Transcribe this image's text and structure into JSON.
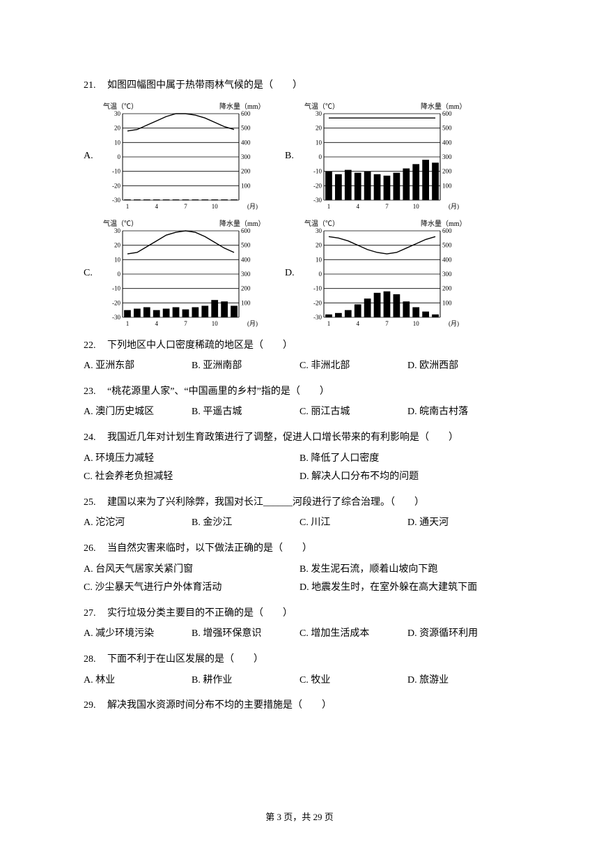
{
  "q21": {
    "num": "21.",
    "stem": "如图四幅图中属于热带雨林气候的是（　　）",
    "charts": {
      "axis_temp_label": "气温（℃）",
      "axis_precip_label": "降水量（mm）",
      "x_label": "(月)",
      "temp_ticks": [
        30,
        20,
        10,
        0,
        -10,
        -20,
        -30
      ],
      "precip_ticks": [
        600,
        500,
        400,
        300,
        200,
        100
      ],
      "x_ticks": [
        1,
        4,
        7,
        10
      ],
      "colors": {
        "line": "#000000",
        "bar": "#000000",
        "axis": "#000000",
        "bg": "#ffffff"
      },
      "A": {
        "label": "A.",
        "temp": [
          18,
          19,
          22,
          25,
          28,
          30,
          30,
          29,
          27,
          24,
          21,
          19
        ],
        "precip": [
          5,
          5,
          5,
          5,
          5,
          5,
          5,
          5,
          5,
          5,
          5,
          5
        ]
      },
      "B": {
        "label": "B.",
        "temp": [
          27,
          27,
          27,
          27,
          27,
          27,
          27,
          27,
          27,
          27,
          27,
          27
        ],
        "precip": [
          200,
          180,
          210,
          190,
          200,
          180,
          170,
          190,
          220,
          250,
          280,
          260
        ]
      },
      "C": {
        "label": "C.",
        "temp": [
          14,
          15,
          19,
          23,
          27,
          29,
          30,
          29,
          26,
          22,
          18,
          15
        ],
        "precip": [
          50,
          60,
          70,
          50,
          60,
          70,
          55,
          70,
          80,
          120,
          110,
          80
        ]
      },
      "D": {
        "label": "D.",
        "temp": [
          26,
          25,
          23,
          20,
          17,
          15,
          14,
          15,
          18,
          21,
          24,
          26
        ],
        "precip": [
          20,
          30,
          50,
          90,
          130,
          170,
          180,
          160,
          110,
          70,
          40,
          20
        ]
      }
    }
  },
  "q22": {
    "num": "22.",
    "stem": "下列地区中人口密度稀疏的地区是（　　）",
    "opts": [
      "A. 亚洲东部",
      "B. 亚洲南部",
      "C. 非洲北部",
      "D. 欧洲西部"
    ]
  },
  "q23": {
    "num": "23.",
    "stem": "“桃花源里人家”、“中国画里的乡村”指的是（　　）",
    "opts": [
      "A. 澳门历史城区",
      "B. 平遥古城",
      "C. 丽江古城",
      "D. 皖南古村落"
    ]
  },
  "q24": {
    "num": "24.",
    "stem": "我国近几年对计划生育政策进行了调整，促进人口增长带来的有利影响是（　　）",
    "opts": [
      "A. 环境压力减轻",
      "B. 降低了人口密度",
      "C. 社会养老负担减轻",
      "D. 解决人口分布不均的问题"
    ]
  },
  "q25": {
    "num": "25.",
    "stem": "建国以来为了兴利除弊，我国对长江______河段进行了综合治理。（　　）",
    "opts": [
      "A. 沱沱河",
      "B. 金沙江",
      "C. 川江",
      "D. 通天河"
    ]
  },
  "q26": {
    "num": "26.",
    "stem": "当自然灾害来临时，以下做法正确的是（　　）",
    "opts": [
      "A. 台风天气居家关紧门窗",
      "B. 发生泥石流，顺着山坡向下跑",
      "C. 沙尘暴天气进行户外体育活动",
      "D. 地震发生时，在室外躲在高大建筑下面"
    ]
  },
  "q27": {
    "num": "27.",
    "stem": "实行垃圾分类主要目的不正确的是（　　）",
    "opts": [
      "A. 减少环境污染",
      "B. 增强环保意识",
      "C. 增加生活成本",
      "D. 资源循环利用"
    ]
  },
  "q28": {
    "num": "28.",
    "stem": "下面不利于在山区发展的是（　　）",
    "opts": [
      "A. 林业",
      "B. 耕作业",
      "C. 牧业",
      "D. 旅游业"
    ]
  },
  "q29": {
    "num": "29.",
    "stem": "解决我国水资源时间分布不均的主要措施是（　　）"
  },
  "footer": "第 3 页，共 29 页"
}
